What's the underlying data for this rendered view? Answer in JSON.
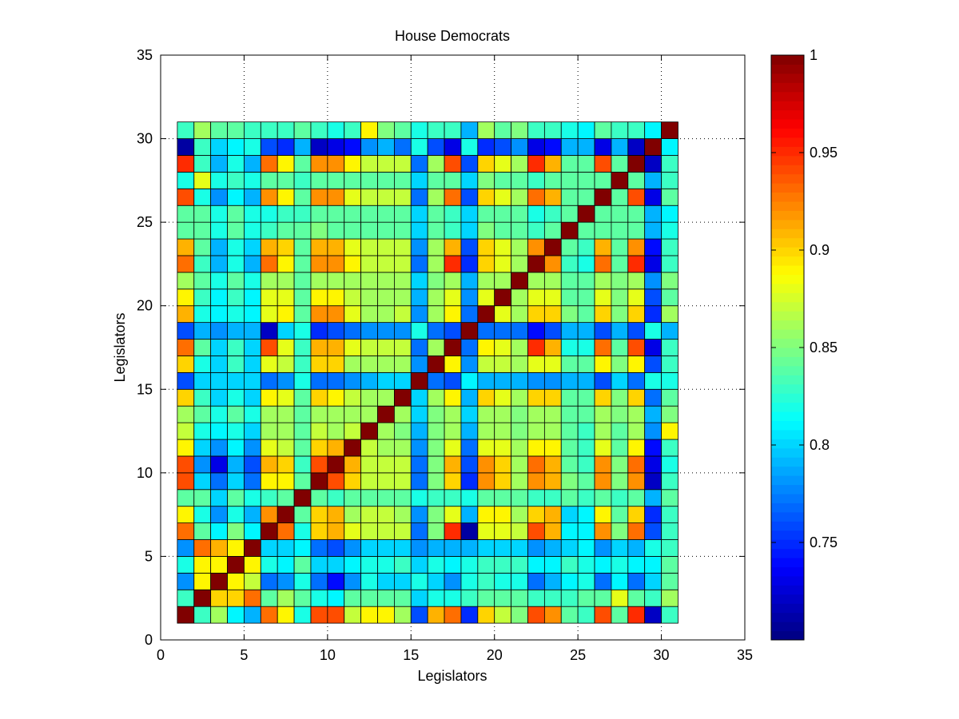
{
  "chart_data": {
    "type": "heatmap",
    "title": "House Democrats",
    "xlabel": "Legislators",
    "ylabel": "Legislators",
    "xlim": [
      0,
      35
    ],
    "ylim": [
      0,
      35
    ],
    "xticks": [
      0,
      5,
      10,
      15,
      20,
      25,
      30,
      35
    ],
    "yticks": [
      0,
      5,
      10,
      15,
      20,
      25,
      30,
      35
    ],
    "grid": "dotted",
    "colormap": "jet",
    "color_range": [
      0.7,
      1.0
    ],
    "colorbar_ticks": [
      0.75,
      0.8,
      0.85,
      0.9,
      0.95,
      1
    ],
    "x_range": [
      1,
      31
    ],
    "y_range": [
      1,
      31
    ],
    "rows_note": "rows listed from y=1 (bottom) to y=30 (top), 30 cells per row",
    "matrix": [
      [
        1.0,
        0.83,
        0.86,
        0.81,
        0.79,
        0.93,
        0.89,
        0.82,
        0.94,
        0.94,
        0.87,
        0.89,
        0.89,
        0.86,
        0.76,
        0.91,
        0.93,
        0.75,
        0.9,
        0.87,
        0.85,
        0.94,
        0.92,
        0.84,
        0.83,
        0.94,
        0.84,
        0.95,
        0.72,
        0.83
      ],
      [
        0.83,
        1.0,
        0.9,
        0.9,
        0.93,
        0.84,
        0.86,
        0.84,
        0.82,
        0.81,
        0.84,
        0.84,
        0.84,
        0.84,
        0.8,
        0.82,
        0.82,
        0.83,
        0.84,
        0.84,
        0.84,
        0.83,
        0.83,
        0.83,
        0.84,
        0.84,
        0.88,
        0.84,
        0.83,
        0.86
      ],
      [
        0.78,
        0.89,
        1.0,
        0.89,
        0.87,
        0.77,
        0.78,
        0.82,
        0.77,
        0.74,
        0.78,
        0.82,
        0.8,
        0.8,
        0.82,
        0.8,
        0.78,
        0.82,
        0.83,
        0.82,
        0.82,
        0.77,
        0.79,
        0.81,
        0.82,
        0.77,
        0.81,
        0.77,
        0.8,
        0.84
      ],
      [
        0.82,
        0.89,
        0.89,
        1.0,
        0.89,
        0.82,
        0.81,
        0.84,
        0.8,
        0.8,
        0.81,
        0.82,
        0.82,
        0.83,
        0.8,
        0.82,
        0.81,
        0.82,
        0.83,
        0.83,
        0.83,
        0.81,
        0.81,
        0.83,
        0.82,
        0.81,
        0.82,
        0.81,
        0.81,
        0.84
      ],
      [
        0.78,
        0.93,
        0.91,
        0.89,
        1.0,
        0.8,
        0.8,
        0.81,
        0.77,
        0.76,
        0.78,
        0.8,
        0.8,
        0.8,
        0.78,
        0.79,
        0.79,
        0.79,
        0.8,
        0.8,
        0.8,
        0.78,
        0.79,
        0.8,
        0.81,
        0.78,
        0.8,
        0.79,
        0.82,
        0.83
      ],
      [
        0.93,
        0.84,
        0.81,
        0.85,
        0.81,
        1.0,
        0.93,
        0.82,
        0.9,
        0.91,
        0.88,
        0.87,
        0.87,
        0.87,
        0.77,
        0.85,
        0.95,
        0.71,
        0.88,
        0.88,
        0.87,
        0.94,
        0.91,
        0.81,
        0.81,
        0.92,
        0.85,
        0.93,
        0.76,
        0.83
      ],
      [
        0.89,
        0.82,
        0.78,
        0.82,
        0.79,
        0.92,
        1.0,
        0.84,
        0.9,
        0.91,
        0.86,
        0.87,
        0.87,
        0.86,
        0.78,
        0.85,
        0.88,
        0.79,
        0.89,
        0.89,
        0.86,
        0.9,
        0.91,
        0.8,
        0.81,
        0.89,
        0.84,
        0.9,
        0.75,
        0.83
      ],
      [
        0.84,
        0.84,
        0.8,
        0.84,
        0.82,
        0.83,
        0.84,
        1.0,
        0.84,
        0.83,
        0.84,
        0.84,
        0.84,
        0.84,
        0.82,
        0.83,
        0.83,
        0.82,
        0.84,
        0.84,
        0.84,
        0.83,
        0.83,
        0.84,
        0.83,
        0.84,
        0.83,
        0.84,
        0.79,
        0.84
      ],
      [
        0.94,
        0.8,
        0.77,
        0.8,
        0.77,
        0.89,
        0.89,
        0.84,
        1.0,
        0.94,
        0.9,
        0.87,
        0.87,
        0.87,
        0.77,
        0.85,
        0.9,
        0.75,
        0.92,
        0.9,
        0.86,
        0.92,
        0.91,
        0.85,
        0.84,
        0.92,
        0.85,
        0.92,
        0.72,
        0.83
      ],
      [
        0.94,
        0.78,
        0.73,
        0.79,
        0.76,
        0.91,
        0.9,
        0.83,
        0.94,
        1.0,
        0.91,
        0.87,
        0.87,
        0.87,
        0.77,
        0.85,
        0.91,
        0.76,
        0.92,
        0.9,
        0.86,
        0.93,
        0.91,
        0.84,
        0.83,
        0.92,
        0.85,
        0.93,
        0.73,
        0.82
      ],
      [
        0.89,
        0.8,
        0.78,
        0.81,
        0.78,
        0.88,
        0.87,
        0.84,
        0.9,
        0.91,
        1.0,
        0.87,
        0.86,
        0.86,
        0.78,
        0.85,
        0.88,
        0.77,
        0.88,
        0.88,
        0.86,
        0.89,
        0.89,
        0.84,
        0.83,
        0.88,
        0.84,
        0.89,
        0.74,
        0.83
      ],
      [
        0.87,
        0.82,
        0.81,
        0.82,
        0.8,
        0.86,
        0.86,
        0.84,
        0.87,
        0.86,
        0.87,
        1.0,
        0.86,
        0.85,
        0.79,
        0.85,
        0.86,
        0.79,
        0.86,
        0.86,
        0.85,
        0.86,
        0.86,
        0.84,
        0.83,
        0.86,
        0.84,
        0.86,
        0.78,
        0.89
      ],
      [
        0.86,
        0.84,
        0.82,
        0.84,
        0.82,
        0.86,
        0.86,
        0.84,
        0.86,
        0.86,
        0.86,
        0.86,
        1.0,
        0.86,
        0.8,
        0.85,
        0.86,
        0.8,
        0.86,
        0.86,
        0.85,
        0.86,
        0.86,
        0.84,
        0.84,
        0.86,
        0.85,
        0.86,
        0.79,
        0.85
      ],
      [
        0.9,
        0.83,
        0.8,
        0.82,
        0.8,
        0.89,
        0.88,
        0.84,
        0.9,
        0.89,
        0.87,
        0.86,
        0.86,
        1.0,
        0.8,
        0.86,
        0.89,
        0.79,
        0.9,
        0.88,
        0.86,
        0.9,
        0.9,
        0.84,
        0.84,
        0.9,
        0.85,
        0.9,
        0.77,
        0.84
      ],
      [
        0.76,
        0.8,
        0.8,
        0.8,
        0.8,
        0.77,
        0.78,
        0.82,
        0.77,
        0.77,
        0.78,
        0.79,
        0.8,
        0.8,
        1.0,
        0.77,
        0.76,
        0.81,
        0.79,
        0.79,
        0.79,
        0.78,
        0.78,
        0.79,
        0.79,
        0.76,
        0.8,
        0.77,
        0.82,
        0.82
      ],
      [
        0.9,
        0.82,
        0.8,
        0.83,
        0.8,
        0.88,
        0.87,
        0.83,
        0.9,
        0.9,
        0.86,
        0.86,
        0.86,
        0.86,
        0.78,
        1.0,
        0.89,
        0.78,
        0.87,
        0.87,
        0.86,
        0.88,
        0.88,
        0.84,
        0.84,
        0.89,
        0.85,
        0.89,
        0.76,
        0.83
      ],
      [
        0.93,
        0.84,
        0.8,
        0.83,
        0.8,
        0.94,
        0.88,
        0.83,
        0.91,
        0.91,
        0.88,
        0.87,
        0.87,
        0.87,
        0.77,
        0.86,
        1.0,
        0.77,
        0.89,
        0.88,
        0.86,
        0.95,
        0.91,
        0.82,
        0.82,
        0.93,
        0.84,
        0.94,
        0.73,
        0.83
      ],
      [
        0.76,
        0.79,
        0.78,
        0.79,
        0.79,
        0.72,
        0.8,
        0.82,
        0.75,
        0.76,
        0.77,
        0.78,
        0.78,
        0.78,
        0.82,
        0.77,
        0.76,
        1.0,
        0.77,
        0.77,
        0.77,
        0.74,
        0.76,
        0.79,
        0.79,
        0.76,
        0.79,
        0.76,
        0.82,
        0.79
      ],
      [
        0.91,
        0.82,
        0.81,
        0.82,
        0.81,
        0.88,
        0.89,
        0.84,
        0.92,
        0.92,
        0.88,
        0.86,
        0.86,
        0.87,
        0.78,
        0.86,
        0.89,
        0.77,
        1.0,
        0.88,
        0.86,
        0.9,
        0.9,
        0.85,
        0.84,
        0.9,
        0.85,
        0.9,
        0.75,
        0.86
      ],
      [
        0.89,
        0.83,
        0.81,
        0.83,
        0.81,
        0.88,
        0.88,
        0.84,
        0.89,
        0.89,
        0.87,
        0.86,
        0.86,
        0.86,
        0.79,
        0.86,
        0.88,
        0.78,
        0.88,
        1.0,
        0.86,
        0.88,
        0.88,
        0.84,
        0.84,
        0.88,
        0.85,
        0.88,
        0.76,
        0.84
      ],
      [
        0.86,
        0.84,
        0.82,
        0.84,
        0.82,
        0.86,
        0.86,
        0.84,
        0.86,
        0.86,
        0.86,
        0.86,
        0.86,
        0.86,
        0.8,
        0.85,
        0.86,
        0.79,
        0.86,
        0.86,
        1.0,
        0.86,
        0.86,
        0.84,
        0.84,
        0.86,
        0.85,
        0.86,
        0.78,
        0.85
      ],
      [
        0.93,
        0.83,
        0.79,
        0.82,
        0.79,
        0.93,
        0.89,
        0.84,
        0.92,
        0.92,
        0.89,
        0.87,
        0.87,
        0.87,
        0.77,
        0.86,
        0.95,
        0.75,
        0.9,
        0.88,
        0.86,
        1.0,
        0.92,
        0.83,
        0.82,
        0.93,
        0.84,
        0.95,
        0.73,
        0.83
      ],
      [
        0.91,
        0.84,
        0.79,
        0.82,
        0.8,
        0.91,
        0.9,
        0.84,
        0.91,
        0.91,
        0.88,
        0.87,
        0.87,
        0.87,
        0.78,
        0.86,
        0.91,
        0.76,
        0.9,
        0.88,
        0.86,
        0.92,
        1.0,
        0.84,
        0.83,
        0.91,
        0.84,
        0.92,
        0.74,
        0.83
      ],
      [
        0.84,
        0.84,
        0.82,
        0.84,
        0.82,
        0.83,
        0.84,
        0.84,
        0.85,
        0.84,
        0.84,
        0.84,
        0.84,
        0.84,
        0.8,
        0.84,
        0.83,
        0.8,
        0.85,
        0.84,
        0.84,
        0.83,
        0.84,
        1.0,
        0.84,
        0.84,
        0.84,
        0.84,
        0.79,
        0.82
      ],
      [
        0.84,
        0.84,
        0.82,
        0.84,
        0.82,
        0.82,
        0.83,
        0.83,
        0.84,
        0.84,
        0.84,
        0.84,
        0.84,
        0.84,
        0.8,
        0.84,
        0.83,
        0.8,
        0.84,
        0.84,
        0.84,
        0.82,
        0.83,
        0.84,
        1.0,
        0.84,
        0.84,
        0.84,
        0.79,
        0.81
      ],
      [
        0.94,
        0.82,
        0.78,
        0.81,
        0.79,
        0.92,
        0.89,
        0.84,
        0.92,
        0.92,
        0.88,
        0.87,
        0.87,
        0.87,
        0.77,
        0.86,
        0.93,
        0.76,
        0.9,
        0.88,
        0.86,
        0.93,
        0.91,
        0.84,
        0.84,
        1.0,
        0.84,
        0.94,
        0.73,
        0.84
      ],
      [
        0.82,
        0.88,
        0.82,
        0.83,
        0.82,
        0.84,
        0.84,
        0.83,
        0.84,
        0.84,
        0.84,
        0.84,
        0.84,
        0.84,
        0.8,
        0.84,
        0.84,
        0.8,
        0.85,
        0.84,
        0.84,
        0.83,
        0.84,
        0.84,
        0.84,
        0.84,
        1.0,
        0.84,
        0.79,
        0.83
      ],
      [
        0.95,
        0.83,
        0.79,
        0.82,
        0.79,
        0.93,
        0.89,
        0.84,
        0.92,
        0.92,
        0.89,
        0.87,
        0.87,
        0.87,
        0.77,
        0.86,
        0.94,
        0.76,
        0.9,
        0.88,
        0.86,
        0.95,
        0.91,
        0.84,
        0.84,
        0.94,
        0.84,
        1.0,
        0.72,
        0.83
      ],
      [
        0.71,
        0.83,
        0.8,
        0.81,
        0.82,
        0.76,
        0.75,
        0.79,
        0.72,
        0.73,
        0.74,
        0.78,
        0.79,
        0.77,
        0.82,
        0.76,
        0.73,
        0.82,
        0.75,
        0.76,
        0.78,
        0.73,
        0.74,
        0.79,
        0.79,
        0.73,
        0.79,
        0.72,
        1.0,
        0.81
      ],
      [
        0.83,
        0.86,
        0.84,
        0.84,
        0.83,
        0.83,
        0.83,
        0.84,
        0.83,
        0.82,
        0.83,
        0.89,
        0.85,
        0.84,
        0.82,
        0.83,
        0.83,
        0.79,
        0.86,
        0.84,
        0.85,
        0.83,
        0.83,
        0.82,
        0.81,
        0.84,
        0.83,
        0.83,
        0.81,
        1.0
      ]
    ]
  }
}
